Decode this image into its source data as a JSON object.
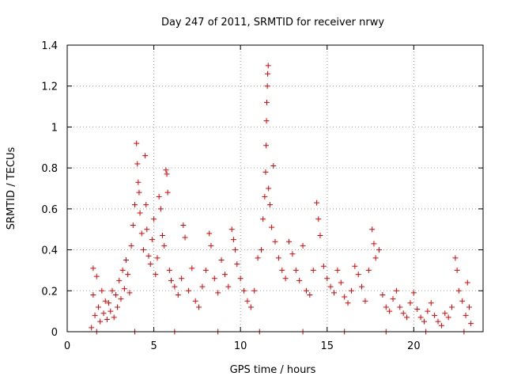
{
  "chart_data": {
    "type": "scatter",
    "title": "Day 247 of 2011, SRMTID for receiver nrwy",
    "xlabel": "GPS time / hours",
    "ylabel": "SRMTID / TECUs",
    "xlim": [
      0,
      24
    ],
    "ylim": [
      0,
      1.4
    ],
    "xticks": [
      0,
      5,
      10,
      15,
      20
    ],
    "yticks": [
      0,
      0.2,
      0.4,
      0.6,
      0.8,
      1,
      1.2,
      1.4
    ],
    "xtick_labels": [
      "0",
      "5",
      "10",
      "15",
      "20"
    ],
    "ytick_labels": [
      "0",
      "0.2",
      "0.4",
      "0.6",
      "0.8",
      "1",
      "1.2",
      "1.4"
    ],
    "grid": true,
    "marker": "+",
    "color": "#e00000",
    "series": [
      {
        "name": "SRMTID",
        "points": [
          [
            1.4,
            0.02
          ],
          [
            1.5,
            0.31
          ],
          [
            1.5,
            0.18
          ],
          [
            1.6,
            0.08
          ],
          [
            1.7,
            0.27
          ],
          [
            1.8,
            0.12
          ],
          [
            1.9,
            0.05
          ],
          [
            2.0,
            0.2
          ],
          [
            2.1,
            0.09
          ],
          [
            2.2,
            0.15
          ],
          [
            2.3,
            0.06
          ],
          [
            2.4,
            0.14
          ],
          [
            2.5,
            0.1
          ],
          [
            2.6,
            0.2
          ],
          [
            2.7,
            0.07
          ],
          [
            2.8,
            0.18
          ],
          [
            2.9,
            0.12
          ],
          [
            3.0,
            0.25
          ],
          [
            3.1,
            0.16
          ],
          [
            3.2,
            0.3
          ],
          [
            3.3,
            0.21
          ],
          [
            3.4,
            0.35
          ],
          [
            3.5,
            0.28
          ],
          [
            3.6,
            0.19
          ],
          [
            3.7,
            0.42
          ],
          [
            3.8,
            0.52
          ],
          [
            3.9,
            0.62
          ],
          [
            4.0,
            0.92
          ],
          [
            4.05,
            0.82
          ],
          [
            4.1,
            0.73
          ],
          [
            4.15,
            0.68
          ],
          [
            4.2,
            0.58
          ],
          [
            4.3,
            0.48
          ],
          [
            4.4,
            0.4
          ],
          [
            4.5,
            0.86
          ],
          [
            4.55,
            0.62
          ],
          [
            4.6,
            0.5
          ],
          [
            4.7,
            0.37
          ],
          [
            4.8,
            0.33
          ],
          [
            4.9,
            0.45
          ],
          [
            5.0,
            0.55
          ],
          [
            5.1,
            0.28
          ],
          [
            5.2,
            0.36
          ],
          [
            5.3,
            0.66
          ],
          [
            5.4,
            0.6
          ],
          [
            5.5,
            0.47
          ],
          [
            5.6,
            0.42
          ],
          [
            5.7,
            0.79
          ],
          [
            5.75,
            0.77
          ],
          [
            5.8,
            0.68
          ],
          [
            5.9,
            0.3
          ],
          [
            6.0,
            0.25
          ],
          [
            6.2,
            0.22
          ],
          [
            6.4,
            0.18
          ],
          [
            6.6,
            0.26
          ],
          [
            6.7,
            0.52
          ],
          [
            6.8,
            0.46
          ],
          [
            7.0,
            0.2
          ],
          [
            7.2,
            0.31
          ],
          [
            7.4,
            0.15
          ],
          [
            7.6,
            0.12
          ],
          [
            7.8,
            0.22
          ],
          [
            8.0,
            0.3
          ],
          [
            8.2,
            0.48
          ],
          [
            8.3,
            0.42
          ],
          [
            8.5,
            0.26
          ],
          [
            8.7,
            0.19
          ],
          [
            8.9,
            0.35
          ],
          [
            9.1,
            0.28
          ],
          [
            9.3,
            0.22
          ],
          [
            9.5,
            0.5
          ],
          [
            9.6,
            0.45
          ],
          [
            9.7,
            0.4
          ],
          [
            9.8,
            0.33
          ],
          [
            10.0,
            0.26
          ],
          [
            10.2,
            0.2
          ],
          [
            10.4,
            0.15
          ],
          [
            10.6,
            0.12
          ],
          [
            10.8,
            0.2
          ],
          [
            11.0,
            0.36
          ],
          [
            11.2,
            0.4
          ],
          [
            11.3,
            0.55
          ],
          [
            11.4,
            0.66
          ],
          [
            11.45,
            0.78
          ],
          [
            11.48,
            0.91
          ],
          [
            11.5,
            1.03
          ],
          [
            11.52,
            1.12
          ],
          [
            11.55,
            1.2
          ],
          [
            11.57,
            1.26
          ],
          [
            11.6,
            1.3
          ],
          [
            11.62,
            0.7
          ],
          [
            11.7,
            0.62
          ],
          [
            11.8,
            0.51
          ],
          [
            11.9,
            0.81
          ],
          [
            12.0,
            0.44
          ],
          [
            12.2,
            0.36
          ],
          [
            12.4,
            0.3
          ],
          [
            12.6,
            0.26
          ],
          [
            12.8,
            0.44
          ],
          [
            13.0,
            0.38
          ],
          [
            13.2,
            0.3
          ],
          [
            13.4,
            0.25
          ],
          [
            13.6,
            0.42
          ],
          [
            13.8,
            0.2
          ],
          [
            14.0,
            0.18
          ],
          [
            14.2,
            0.3
          ],
          [
            14.4,
            0.63
          ],
          [
            14.5,
            0.55
          ],
          [
            14.6,
            0.47
          ],
          [
            14.8,
            0.32
          ],
          [
            15.0,
            0.26
          ],
          [
            15.2,
            0.22
          ],
          [
            15.4,
            0.19
          ],
          [
            15.6,
            0.3
          ],
          [
            15.8,
            0.24
          ],
          [
            16.0,
            0.17
          ],
          [
            16.2,
            0.14
          ],
          [
            16.4,
            0.2
          ],
          [
            16.6,
            0.32
          ],
          [
            16.8,
            0.28
          ],
          [
            17.0,
            0.22
          ],
          [
            17.2,
            0.15
          ],
          [
            17.4,
            0.3
          ],
          [
            17.6,
            0.5
          ],
          [
            17.7,
            0.43
          ],
          [
            17.8,
            0.36
          ],
          [
            18.0,
            0.4
          ],
          [
            18.2,
            0.18
          ],
          [
            18.4,
            0.12
          ],
          [
            18.6,
            0.1
          ],
          [
            18.8,
            0.16
          ],
          [
            19.0,
            0.2
          ],
          [
            19.2,
            0.12
          ],
          [
            19.4,
            0.09
          ],
          [
            19.6,
            0.07
          ],
          [
            19.8,
            0.14
          ],
          [
            20.0,
            0.19
          ],
          [
            20.2,
            0.11
          ],
          [
            20.4,
            0.07
          ],
          [
            20.6,
            0.05
          ],
          [
            20.8,
            0.1
          ],
          [
            21.0,
            0.14
          ],
          [
            21.2,
            0.08
          ],
          [
            21.4,
            0.05
          ],
          [
            21.6,
            0.03
          ],
          [
            21.8,
            0.09
          ],
          [
            22.0,
            0.07
          ],
          [
            22.2,
            0.12
          ],
          [
            22.4,
            0.36
          ],
          [
            22.5,
            0.3
          ],
          [
            22.6,
            0.2
          ],
          [
            22.8,
            0.15
          ],
          [
            23.0,
            0.08
          ],
          [
            23.1,
            0.24
          ],
          [
            23.2,
            0.12
          ],
          [
            23.3,
            0.04
          ],
          [
            1.7,
            0.0
          ],
          [
            3.9,
            0.0
          ],
          [
            6.2,
            0.0
          ],
          [
            8.7,
            0.0
          ],
          [
            11.1,
            0.0
          ],
          [
            13.6,
            0.0
          ],
          [
            16.0,
            0.0
          ],
          [
            18.4,
            0.0
          ],
          [
            20.7,
            0.0
          ],
          [
            22.9,
            0.0
          ]
        ]
      }
    ]
  }
}
